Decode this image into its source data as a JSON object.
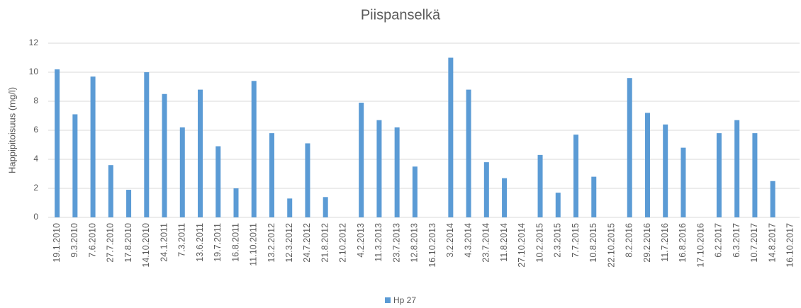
{
  "chart_data": {
    "type": "bar",
    "title": "Piispanselkä",
    "y_label": "Happipitoisuus (mg/l)",
    "categories": [
      "19.1.2010",
      "9.3.2010",
      "7.6.2010",
      "27.7.2010",
      "17.8.2010",
      "14.10.2010",
      "24.1.2011",
      "7.3.2011",
      "13.6.2011",
      "19.7.2011",
      "16.8.2011",
      "11.10.2011",
      "13.2.2012",
      "12.3.2012",
      "24.7.2012",
      "21.8.2012",
      "2.10.2012",
      "4.2.2013",
      "11.3.2013",
      "23.7.2013",
      "12.8.2013",
      "16.10.2013",
      "3.2.2014",
      "4.3.2014",
      "23.7.2014",
      "11.8.2014",
      "27.10.2014",
      "10.2.2015",
      "2.3.2015",
      "7.7.2015",
      "10.8.2015",
      "22.10.2015",
      "8.2.2016",
      "29.2.2016",
      "11.7.2016",
      "16.8.2016",
      "17.10.2016",
      "6.2.2017",
      "6.3.2017",
      "10.7.2017",
      "14.8.2017",
      "16.10.2017"
    ],
    "series": [
      {
        "name": "Hp 27",
        "color": "#5b9bd5",
        "values": [
          10.2,
          7.1,
          9.7,
          3.6,
          1.9,
          10.0,
          8.5,
          6.2,
          8.8,
          4.9,
          2.0,
          9.4,
          5.8,
          1.3,
          5.1,
          1.4,
          null,
          7.9,
          6.7,
          6.2,
          3.5,
          null,
          11.0,
          8.8,
          3.8,
          2.7,
          null,
          4.3,
          1.7,
          5.7,
          2.8,
          null,
          9.6,
          7.2,
          6.4,
          4.8,
          null,
          5.8,
          6.7,
          5.8,
          2.5,
          null
        ]
      }
    ],
    "ylim": [
      0,
      12
    ],
    "yticks": [
      0,
      2,
      4,
      6,
      8,
      10,
      12
    ],
    "grid": true,
    "legend": "bottom"
  }
}
